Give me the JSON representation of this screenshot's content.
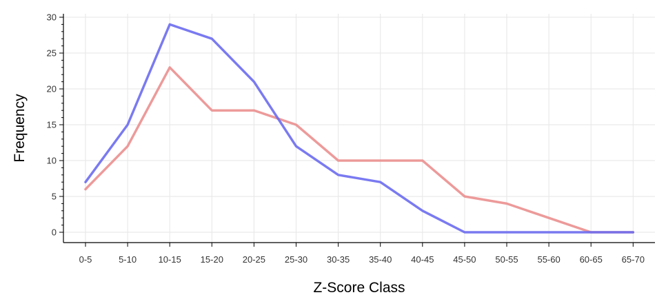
{
  "chart_data": {
    "type": "line",
    "xlabel": "Z-Score Class",
    "ylabel": "Frequency",
    "categories": [
      "0-5",
      "5-10",
      "10-15",
      "15-20",
      "20-25",
      "25-30",
      "30-35",
      "35-40",
      "40-45",
      "45-50",
      "50-55",
      "55-60",
      "60-65",
      "65-70"
    ],
    "ylim": [
      0,
      30
    ],
    "yticks": [
      "0",
      "5",
      "10",
      "15",
      "20",
      "25",
      "30"
    ],
    "grid": true,
    "legend": "none",
    "series": [
      {
        "color": "#eb8f8f",
        "values": [
          6,
          12,
          23,
          17,
          17,
          15,
          10,
          10,
          10,
          5,
          4,
          2,
          0,
          0
        ]
      },
      {
        "color": "#6b6bf0",
        "values": [
          7,
          15,
          29,
          27,
          21,
          12,
          8,
          7,
          3,
          0,
          0,
          0,
          0,
          0
        ]
      }
    ]
  }
}
